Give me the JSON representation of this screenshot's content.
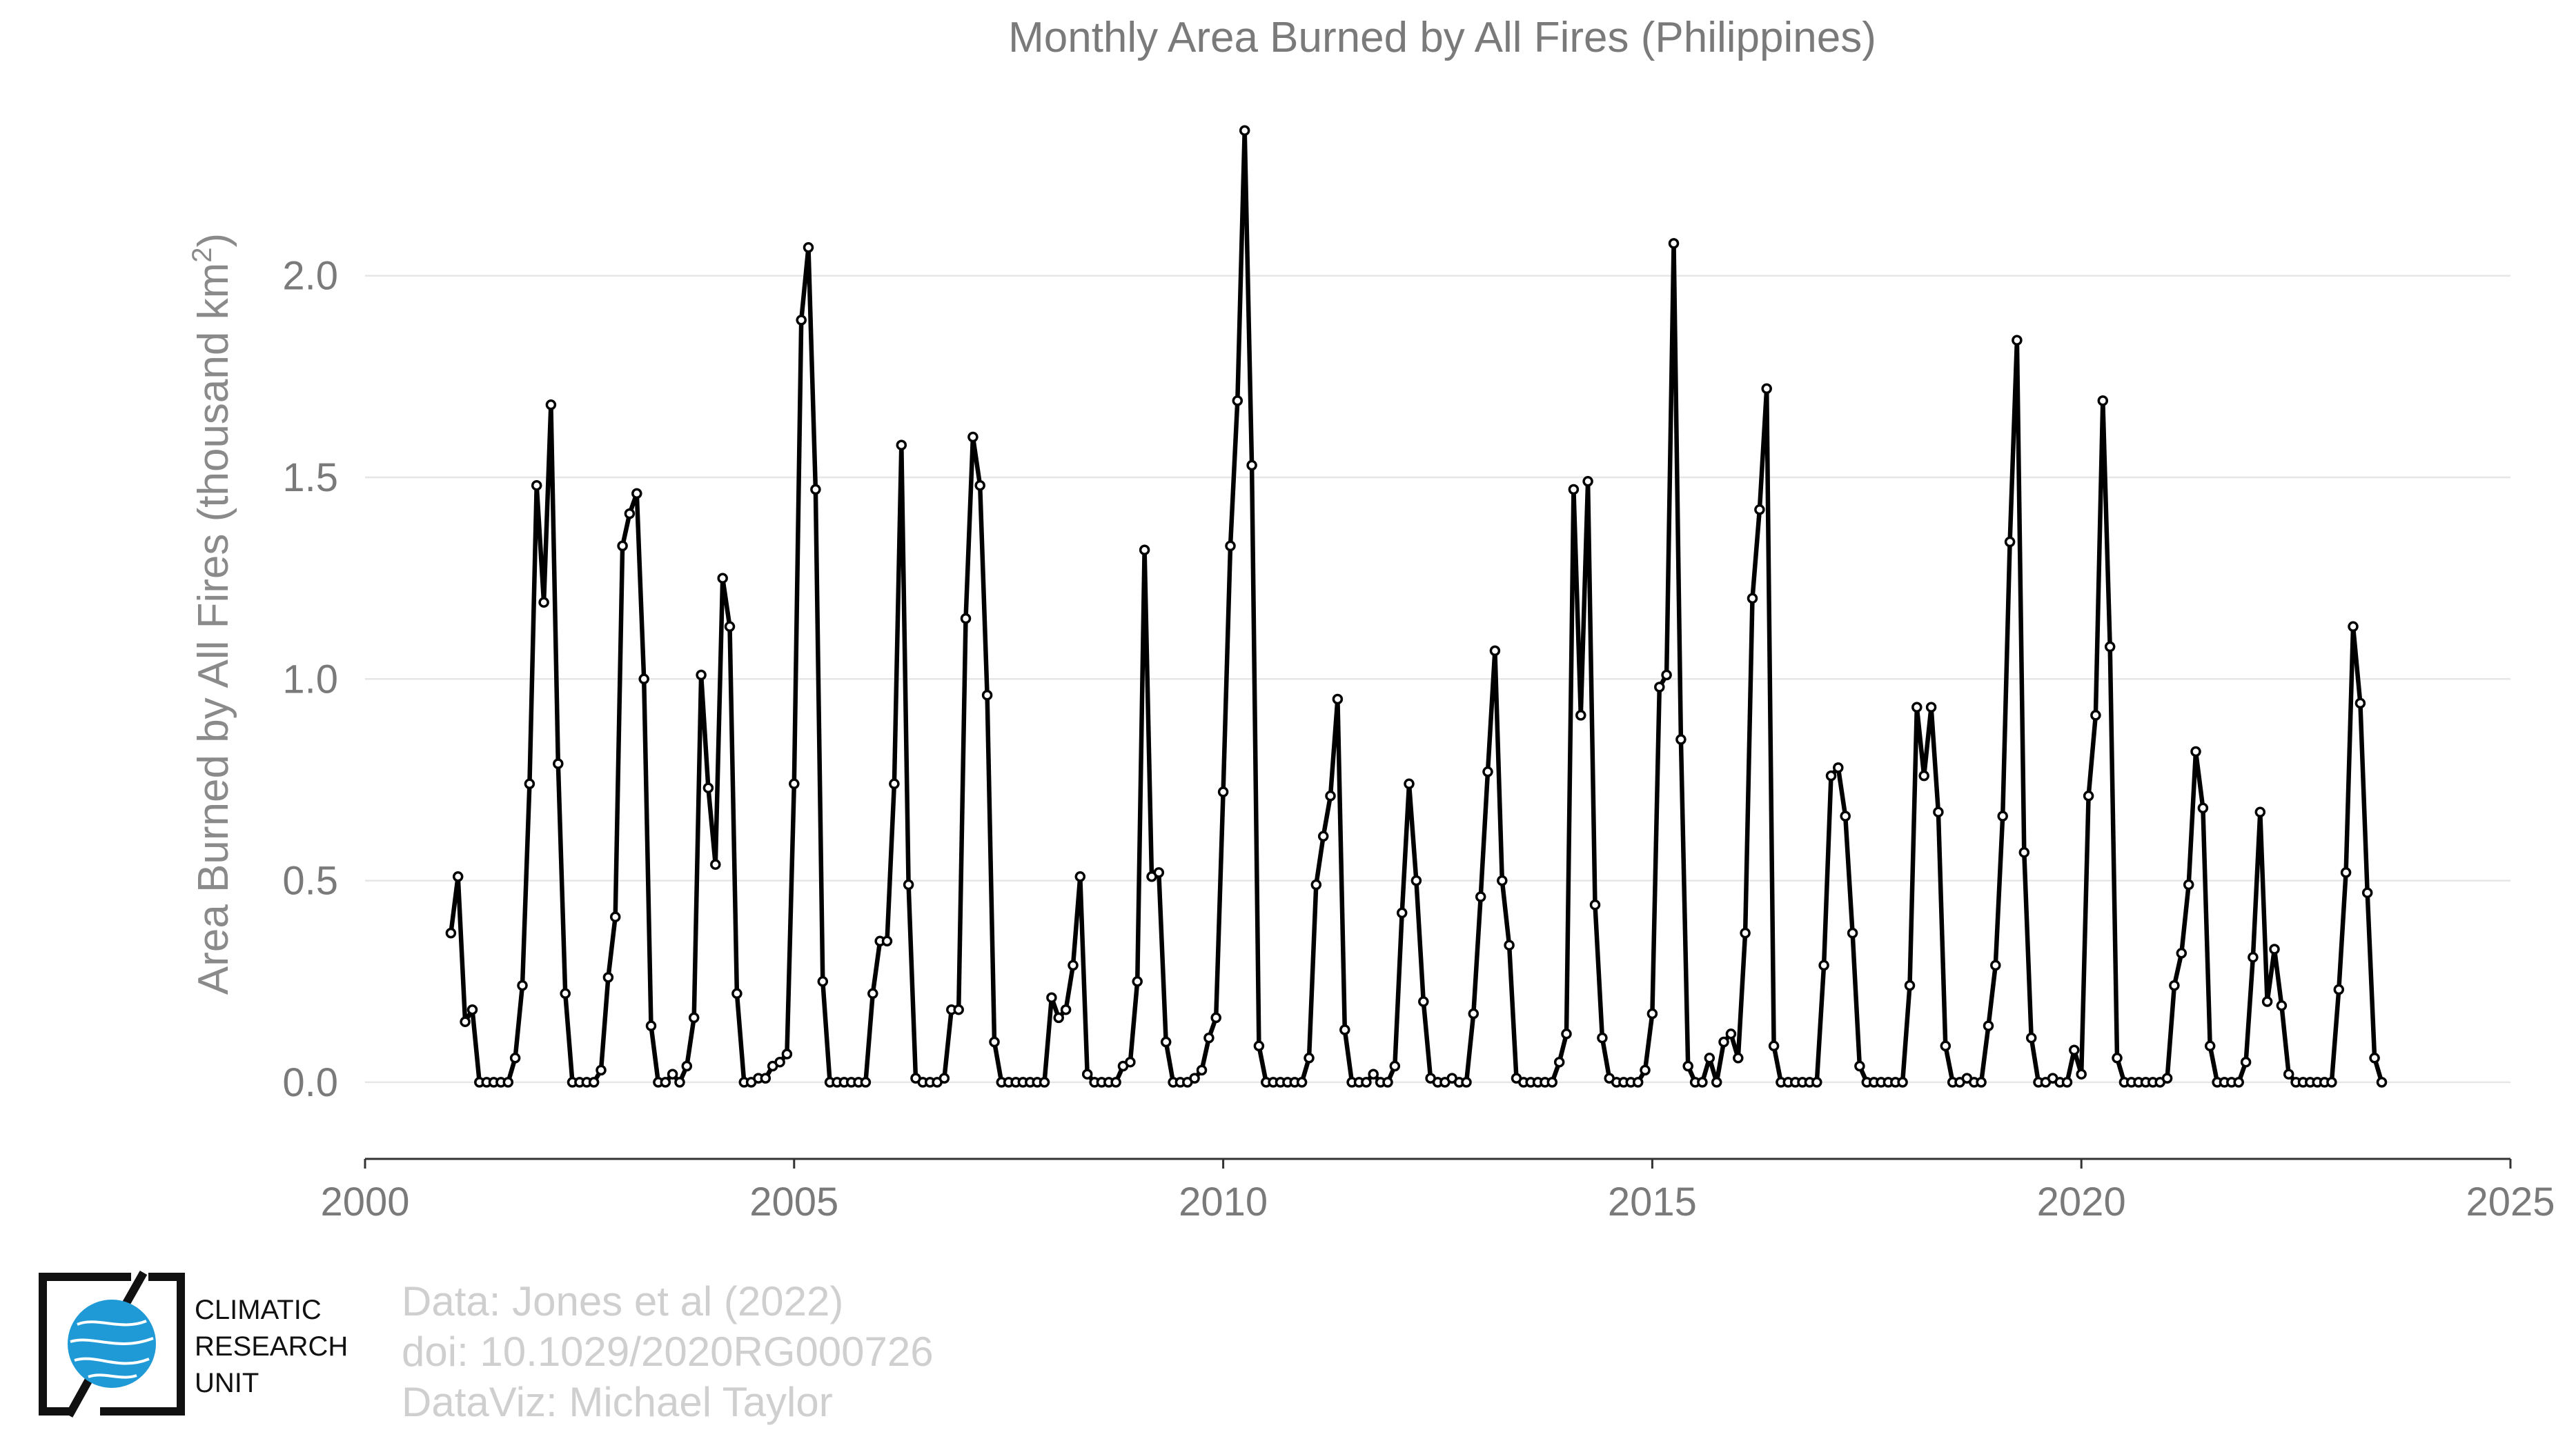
{
  "colors": {
    "line": "#000000",
    "marker_fill": "#ffffff",
    "title": "#7a7a7a",
    "tick": "#7a7a7a",
    "grid": "#e6e6e6",
    "credit": "#cfcfcf",
    "logo_globe": "#1f9ad6"
  },
  "chart_data": {
    "type": "line",
    "title": "Monthly Area Burned by All Fires (Philippines)",
    "xlabel": "",
    "ylabel_main": "Area Burned by All Fires (thousand km",
    "ylabel_sup": "2",
    "ylabel_close": ")",
    "xlim": [
      2000,
      2025
    ],
    "ylim": [
      -0.19,
      2.41
    ],
    "x_ticks": [
      2000,
      2005,
      2010,
      2015,
      2020,
      2025
    ],
    "x_tick_labels": [
      "2000",
      "2005",
      "2010",
      "2015",
      "2020",
      "2025"
    ],
    "y_ticks": [
      0.0,
      0.5,
      1.0,
      1.5,
      2.0
    ],
    "y_tick_labels": [
      "0.0",
      "0.5",
      "1.0",
      "1.5",
      "2.0"
    ],
    "grid": "horizontal",
    "legend": "none",
    "markers": "circle",
    "start_year": 2001,
    "start_month": 1,
    "series": [
      {
        "values": [
          0.37,
          0.51,
          0.15,
          0.18,
          0.0,
          0.0,
          0.0,
          0.0,
          0.0,
          0.06,
          0.24,
          0.74,
          1.48,
          1.19,
          1.68,
          0.79,
          0.22,
          0.0,
          0.0,
          0.0,
          0.0,
          0.03,
          0.26,
          0.41,
          1.33,
          1.41,
          1.46,
          1.0,
          0.14,
          0.0,
          0.0,
          0.02,
          0.0,
          0.04,
          0.16,
          1.01,
          0.73,
          0.54,
          1.25,
          1.13,
          0.22,
          0.0,
          0.0,
          0.01,
          0.01,
          0.04,
          0.05,
          0.07,
          0.74,
          1.89,
          2.07,
          1.47,
          0.25,
          0.0,
          0.0,
          0.0,
          0.0,
          0.0,
          0.0,
          0.22,
          0.35,
          0.35,
          0.74,
          1.58,
          0.49,
          0.01,
          0.0,
          0.0,
          0.0,
          0.01,
          0.18,
          0.18,
          1.15,
          1.6,
          1.48,
          0.96,
          0.1,
          0.0,
          0.0,
          0.0,
          0.0,
          0.0,
          0.0,
          0.0,
          0.21,
          0.16,
          0.18,
          0.29,
          0.51,
          0.02,
          0.0,
          0.0,
          0.0,
          0.0,
          0.04,
          0.05,
          0.25,
          1.32,
          0.51,
          0.52,
          0.1,
          0.0,
          0.0,
          0.0,
          0.01,
          0.03,
          0.11,
          0.16,
          0.72,
          1.33,
          1.69,
          2.36,
          1.53,
          0.09,
          0.0,
          0.0,
          0.0,
          0.0,
          0.0,
          0.0,
          0.06,
          0.49,
          0.61,
          0.71,
          0.95,
          0.13,
          0.0,
          0.0,
          0.0,
          0.02,
          0.0,
          0.0,
          0.04,
          0.42,
          0.74,
          0.5,
          0.2,
          0.01,
          0.0,
          0.0,
          0.01,
          0.0,
          0.0,
          0.17,
          0.46,
          0.77,
          1.07,
          0.5,
          0.34,
          0.01,
          0.0,
          0.0,
          0.0,
          0.0,
          0.0,
          0.05,
          0.12,
          1.47,
          0.91,
          1.49,
          0.44,
          0.11,
          0.01,
          0.0,
          0.0,
          0.0,
          0.0,
          0.03,
          0.17,
          0.98,
          1.01,
          2.08,
          0.85,
          0.04,
          0.0,
          0.0,
          0.06,
          0.0,
          0.1,
          0.12,
          0.06,
          0.37,
          1.2,
          1.42,
          1.72,
          0.09,
          0.0,
          0.0,
          0.0,
          0.0,
          0.0,
          0.0,
          0.29,
          0.76,
          0.78,
          0.66,
          0.37,
          0.04,
          0.0,
          0.0,
          0.0,
          0.0,
          0.0,
          0.0,
          0.24,
          0.93,
          0.76,
          0.93,
          0.67,
          0.09,
          0.0,
          0.0,
          0.01,
          0.0,
          0.0,
          0.14,
          0.29,
          0.66,
          1.34,
          1.84,
          0.57,
          0.11,
          0.0,
          0.0,
          0.01,
          0.0,
          0.0,
          0.08,
          0.02,
          0.71,
          0.91,
          1.69,
          1.08,
          0.06,
          0.0,
          0.0,
          0.0,
          0.0,
          0.0,
          0.0,
          0.01,
          0.24,
          0.32,
          0.49,
          0.82,
          0.68,
          0.09,
          0.0,
          0.0,
          0.0,
          0.0,
          0.05,
          0.31,
          0.67,
          0.2,
          0.33,
          0.19,
          0.02,
          0.0,
          0.0,
          0.0,
          0.0,
          0.0,
          0.0,
          0.23,
          0.52,
          1.13,
          0.94,
          0.47,
          0.06,
          0.0
        ]
      }
    ]
  },
  "credits": {
    "line1": "Data: Jones et al (2022)",
    "line2": "doi: 10.1029/2020RG000726",
    "line3": "DataViz: Michael Taylor"
  },
  "logo": {
    "line1": "CLIMATIC",
    "line2": "RESEARCH",
    "line3": "UNIT",
    "icon": "globe-icon"
  }
}
